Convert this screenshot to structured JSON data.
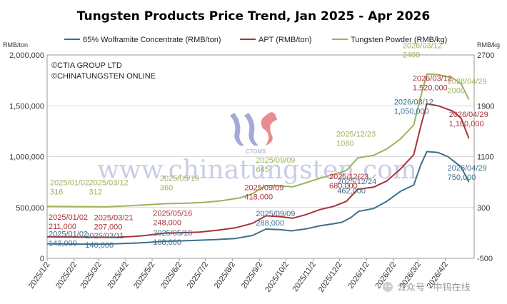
{
  "chart_data": {
    "type": "line",
    "title": "Tungsten Products Price Trend, Jan 2025 - Apr 2026",
    "left_axis_unit": "RMB/ton",
    "right_axis_unit": "RMB/kg",
    "left_ylim": [
      0,
      2000000
    ],
    "right_ylim": [
      -500,
      2700
    ],
    "left_ticks": [
      "0",
      "500,000",
      "1,000,000",
      "1,500,000",
      "2,000,000"
    ],
    "right_ticks": [
      "-500",
      "300",
      "1100",
      "1900",
      "2700"
    ],
    "x_ticks": [
      "2025/1/2",
      "2025/2/2",
      "2025/3/2",
      "2025/4/2",
      "2025/5/2",
      "2025/6/2",
      "2025/7/2",
      "2025/8/2",
      "2025/9/2",
      "2025/10/2",
      "2025/11/2",
      "2025/12/2",
      "2026/1/2",
      "2026/2/2",
      "2026/3/2",
      "2026/4/2"
    ],
    "x_range": [
      "2025-01-02",
      "2026-05-05"
    ],
    "grid": true,
    "legend_placement": "top",
    "copyright": [
      "©CTIA GROUP LTD",
      "©CHINATUNGSTEN ONLINE"
    ],
    "series": [
      {
        "name": "65% Wolframite Concentrate (RMB/ton)",
        "axis": "left",
        "color": "#3d6f8c",
        "points": [
          [
            "2025-01-02",
            143000
          ],
          [
            "2025-01-20",
            141000
          ],
          [
            "2025-02-10",
            140000
          ],
          [
            "2025-03-11",
            140000
          ],
          [
            "2025-04-01",
            147000
          ],
          [
            "2025-04-20",
            152000
          ],
          [
            "2025-05-16",
            168000
          ],
          [
            "2025-06-05",
            172000
          ],
          [
            "2025-06-25",
            178000
          ],
          [
            "2025-07-15",
            185000
          ],
          [
            "2025-08-05",
            195000
          ],
          [
            "2025-08-25",
            225000
          ],
          [
            "2025-09-09",
            288000
          ],
          [
            "2025-09-25",
            282000
          ],
          [
            "2025-10-08",
            270000
          ],
          [
            "2025-10-25",
            290000
          ],
          [
            "2025-11-10",
            320000
          ],
          [
            "2025-11-25",
            340000
          ],
          [
            "2025-12-05",
            355000
          ],
          [
            "2025-12-15",
            400000
          ],
          [
            "2025-12-24",
            462000
          ],
          [
            "2026-01-10",
            490000
          ],
          [
            "2026-01-25",
            560000
          ],
          [
            "2026-02-10",
            660000
          ],
          [
            "2026-02-25",
            720000
          ],
          [
            "2026-03-05",
            920000
          ],
          [
            "2026-03-12",
            1050000
          ],
          [
            "2026-03-25",
            1040000
          ],
          [
            "2026-04-05",
            1000000
          ],
          [
            "2026-04-20",
            900000
          ],
          [
            "2026-04-29",
            750000
          ]
        ]
      },
      {
        "name": "APT (RMB/ton)",
        "axis": "left",
        "color": "#a83438",
        "points": [
          [
            "2025-01-02",
            211000
          ],
          [
            "2025-02-01",
            210000
          ],
          [
            "2025-03-01",
            208000
          ],
          [
            "2025-03-21",
            207000
          ],
          [
            "2025-04-10",
            215000
          ],
          [
            "2025-04-25",
            225000
          ],
          [
            "2025-05-16",
            248000
          ],
          [
            "2025-06-05",
            252000
          ],
          [
            "2025-06-25",
            258000
          ],
          [
            "2025-07-15",
            275000
          ],
          [
            "2025-08-05",
            300000
          ],
          [
            "2025-08-25",
            345000
          ],
          [
            "2025-09-09",
            418000
          ],
          [
            "2025-09-25",
            410000
          ],
          [
            "2025-10-10",
            395000
          ],
          [
            "2025-10-25",
            430000
          ],
          [
            "2025-11-10",
            480000
          ],
          [
            "2025-11-25",
            510000
          ],
          [
            "2025-12-10",
            560000
          ],
          [
            "2025-12-23",
            680000
          ],
          [
            "2026-01-10",
            700000
          ],
          [
            "2026-01-25",
            760000
          ],
          [
            "2026-02-10",
            880000
          ],
          [
            "2026-02-25",
            1020000
          ],
          [
            "2026-03-05",
            1300000
          ],
          [
            "2026-03-12",
            1520000
          ],
          [
            "2026-03-25",
            1500000
          ],
          [
            "2026-04-10",
            1450000
          ],
          [
            "2026-04-20",
            1380000
          ],
          [
            "2026-04-29",
            1180000
          ]
        ]
      },
      {
        "name": "Tungsten Powder (RMB/kg)",
        "axis": "right",
        "color": "#9db35a",
        "points": [
          [
            "2025-01-02",
            316
          ],
          [
            "2025-02-01",
            314
          ],
          [
            "2025-03-12",
            312
          ],
          [
            "2025-04-10",
            330
          ],
          [
            "2025-04-25",
            342
          ],
          [
            "2025-05-19",
            360
          ],
          [
            "2025-06-10",
            368
          ],
          [
            "2025-06-30",
            380
          ],
          [
            "2025-07-20",
            405
          ],
          [
            "2025-08-10",
            450
          ],
          [
            "2025-08-25",
            520
          ],
          [
            "2025-09-09",
            645
          ],
          [
            "2025-09-25",
            640
          ],
          [
            "2025-10-10",
            625
          ],
          [
            "2025-10-25",
            690
          ],
          [
            "2025-11-10",
            760
          ],
          [
            "2025-11-25",
            820
          ],
          [
            "2025-12-10",
            880
          ],
          [
            "2025-12-23",
            1080
          ],
          [
            "2026-01-10",
            1120
          ],
          [
            "2026-01-25",
            1220
          ],
          [
            "2026-02-10",
            1380
          ],
          [
            "2026-02-25",
            1600
          ],
          [
            "2026-03-05",
            2050
          ],
          [
            "2026-03-12",
            2400
          ],
          [
            "2026-03-25",
            2390
          ],
          [
            "2026-04-10",
            2340
          ],
          [
            "2026-04-20",
            2250
          ],
          [
            "2026-04-29",
            2000
          ]
        ]
      }
    ],
    "annotations": [
      {
        "series": 2,
        "lines": [
          "2025/01/02",
          "316"
        ],
        "at": [
          "2025-01-02",
          316
        ],
        "dx": 4,
        "dy": -30
      },
      {
        "series": 2,
        "lines": [
          "2025/03/12",
          "312"
        ],
        "at": [
          "2025-03-12",
          312
        ],
        "dx": -26,
        "dy": -30
      },
      {
        "series": 2,
        "lines": [
          "2025/05/19",
          "360"
        ],
        "at": [
          "2025-05-19",
          360
        ],
        "dx": -10,
        "dy": -32
      },
      {
        "series": 2,
        "lines": [
          "2025/09/09",
          "645"
        ],
        "at": [
          "2025-09-09",
          645
        ],
        "dx": -14,
        "dy": -32
      },
      {
        "series": 2,
        "lines": [
          "2025/12/23",
          "1080"
        ],
        "at": [
          "2025-12-23",
          1080
        ],
        "dx": -30,
        "dy": -30
      },
      {
        "series": 2,
        "lines": [
          "2026/03/12",
          "2400"
        ],
        "at": [
          "2026-03-12",
          2400
        ],
        "dx": -34,
        "dy": -36
      },
      {
        "series": 2,
        "lines": [
          "2026/04/29",
          "2000"
        ],
        "at": [
          "2026-04-29",
          2000
        ],
        "dx": -30,
        "dy": -22
      },
      {
        "series": 1,
        "lines": [
          "2025/01/02",
          "211,000"
        ],
        "at": [
          "2025-01-02",
          211000
        ],
        "dx": 2,
        "dy": -24
      },
      {
        "series": 1,
        "lines": [
          "2025/03/21",
          "207,000"
        ],
        "at": [
          "2025-03-21",
          207000
        ],
        "dx": -30,
        "dy": -24
      },
      {
        "series": 1,
        "lines": [
          "2025/05/16",
          "248,000"
        ],
        "at": [
          "2025-05-16",
          248000
        ],
        "dx": -16,
        "dy": -24
      },
      {
        "series": 1,
        "lines": [
          "2025/09/09",
          "418,000"
        ],
        "at": [
          "2025-09-09",
          418000
        ],
        "dx": -30,
        "dy": -36
      },
      {
        "series": 1,
        "lines": [
          "2025/12/23",
          "680,000"
        ],
        "at": [
          "2025-12-23",
          680000
        ],
        "dx": -40,
        "dy": -14
      },
      {
        "series": 1,
        "lines": [
          "2026/03/12",
          "1,520,000"
        ],
        "at": [
          "2026-03-12",
          1520000
        ],
        "dx": -20,
        "dy": -32
      },
      {
        "series": 1,
        "lines": [
          "2026/04/29",
          "1,180,000"
        ],
        "at": [
          "2026-04-29",
          1180000
        ],
        "dx": -28,
        "dy": -30
      },
      {
        "series": 0,
        "lines": [
          "2025/01/02",
          "143,000"
        ],
        "at": [
          "2025-01-02",
          143000
        ],
        "dx": 2,
        "dy": -10
      },
      {
        "series": 0,
        "lines": [
          "2025/03/11",
          "140,000"
        ],
        "at": [
          "2025-03-11",
          140000
        ],
        "dx": -30,
        "dy": -8
      },
      {
        "series": 0,
        "lines": [
          "2025/05/16",
          "168,000"
        ],
        "at": [
          "2025-05-16",
          168000
        ],
        "dx": -16,
        "dy": -8
      },
      {
        "series": 0,
        "lines": [
          "2025/09/09",
          "288,000"
        ],
        "at": [
          "2025-09-09",
          288000
        ],
        "dx": -14,
        "dy": -18
      },
      {
        "series": 0,
        "lines": [
          "2025/12/24",
          "462,000"
        ],
        "at": [
          "2025-12-24",
          462000
        ],
        "dx": -30,
        "dy": -38
      },
      {
        "series": 0,
        "lines": [
          "2026/03/12",
          "1,050,000"
        ],
        "at": [
          "2026-03-12",
          1050000
        ],
        "dx": -46,
        "dy": -66
      },
      {
        "series": 0,
        "lines": [
          "2026/04/29",
          "750,000"
        ],
        "at": [
          "2026-04-29",
          750000
        ],
        "dx": -30,
        "dy": -16
      }
    ]
  },
  "watermark": {
    "text": "www.chinatungsten.com",
    "logo_text": "CTOMS"
  },
  "footer": {
    "text": "公众号 · 中钨在线"
  }
}
